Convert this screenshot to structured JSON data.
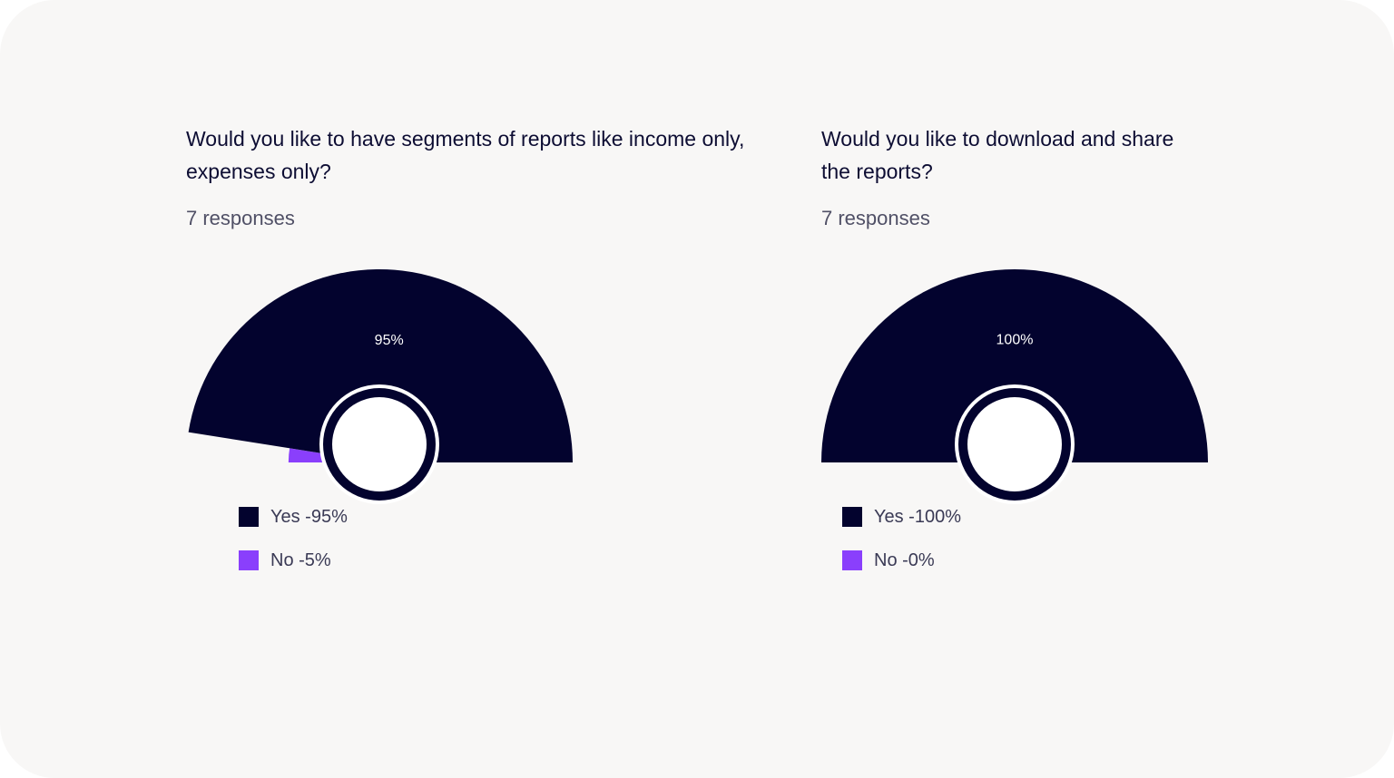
{
  "colors": {
    "yes": "#03032e",
    "no": "#8a3ffc",
    "background": "#f8f7f6"
  },
  "charts": [
    {
      "question": "Would you like to have segments of reports like income only, expenses only?",
      "responses": "7 responses",
      "legend": [
        {
          "label": "Yes -95%",
          "color": "#03032e"
        },
        {
          "label": "No -5%",
          "color": "#8a3ffc"
        }
      ]
    },
    {
      "question": "Would you like to download and share the reports?",
      "responses": "7 responses",
      "legend": [
        {
          "label": "Yes -100%",
          "color": "#03032e"
        },
        {
          "label": "No -0%",
          "color": "#8a3ffc"
        }
      ]
    }
  ],
  "chart_data": [
    {
      "type": "pie",
      "title": "Would you like to have segments of reports like income only, expenses only?",
      "categories": [
        "Yes",
        "No"
      ],
      "values": [
        95,
        5
      ],
      "data_labels": [
        "95%",
        "5%"
      ],
      "colors": [
        "#03032e",
        "#8a3ffc"
      ]
    },
    {
      "type": "pie",
      "title": "Would you like to download and share the reports?",
      "categories": [
        "Yes",
        "No"
      ],
      "values": [
        100,
        0
      ],
      "data_labels": [
        "100%",
        "0%"
      ],
      "colors": [
        "#03032e",
        "#8a3ffc"
      ]
    }
  ]
}
